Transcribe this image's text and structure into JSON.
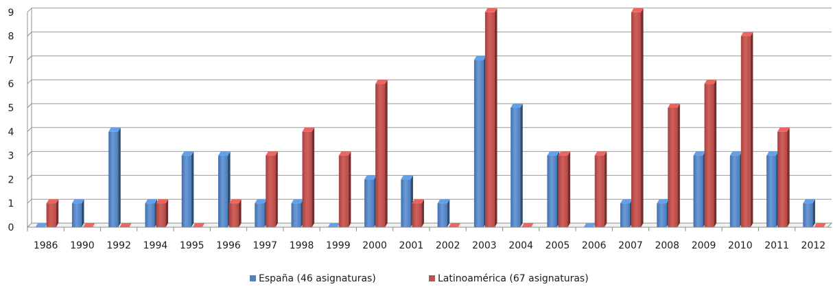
{
  "chart_data": {
    "type": "bar",
    "categories": [
      "1986",
      "1990",
      "1992",
      "1994",
      "1995",
      "1996",
      "1997",
      "1998",
      "1999",
      "2000",
      "2001",
      "2002",
      "2003",
      "2004",
      "2005",
      "2006",
      "2007",
      "2008",
      "2009",
      "2010",
      "2011",
      "2012"
    ],
    "series": [
      {
        "name": "España (46 asignaturas)",
        "color": "#4f81bd",
        "values": [
          0,
          1,
          4,
          1,
          3,
          3,
          1,
          1,
          0,
          2,
          2,
          1,
          7,
          5,
          3,
          0,
          1,
          1,
          3,
          3,
          3,
          1
        ]
      },
      {
        "name": "Latinoamérica (67 asignaturas)",
        "color": "#c0504d",
        "values": [
          1,
          0,
          0,
          1,
          0,
          1,
          3,
          4,
          3,
          6,
          1,
          0,
          9,
          0,
          3,
          3,
          9,
          5,
          6,
          8,
          4,
          0
        ]
      }
    ],
    "ylim": [
      0,
      9
    ],
    "yticks": [
      "0",
      "1",
      "2",
      "3",
      "4",
      "5",
      "6",
      "7",
      "8",
      "9"
    ],
    "grid": true,
    "legend_position": "bottom",
    "title": "",
    "xlabel": "",
    "ylabel": ""
  }
}
